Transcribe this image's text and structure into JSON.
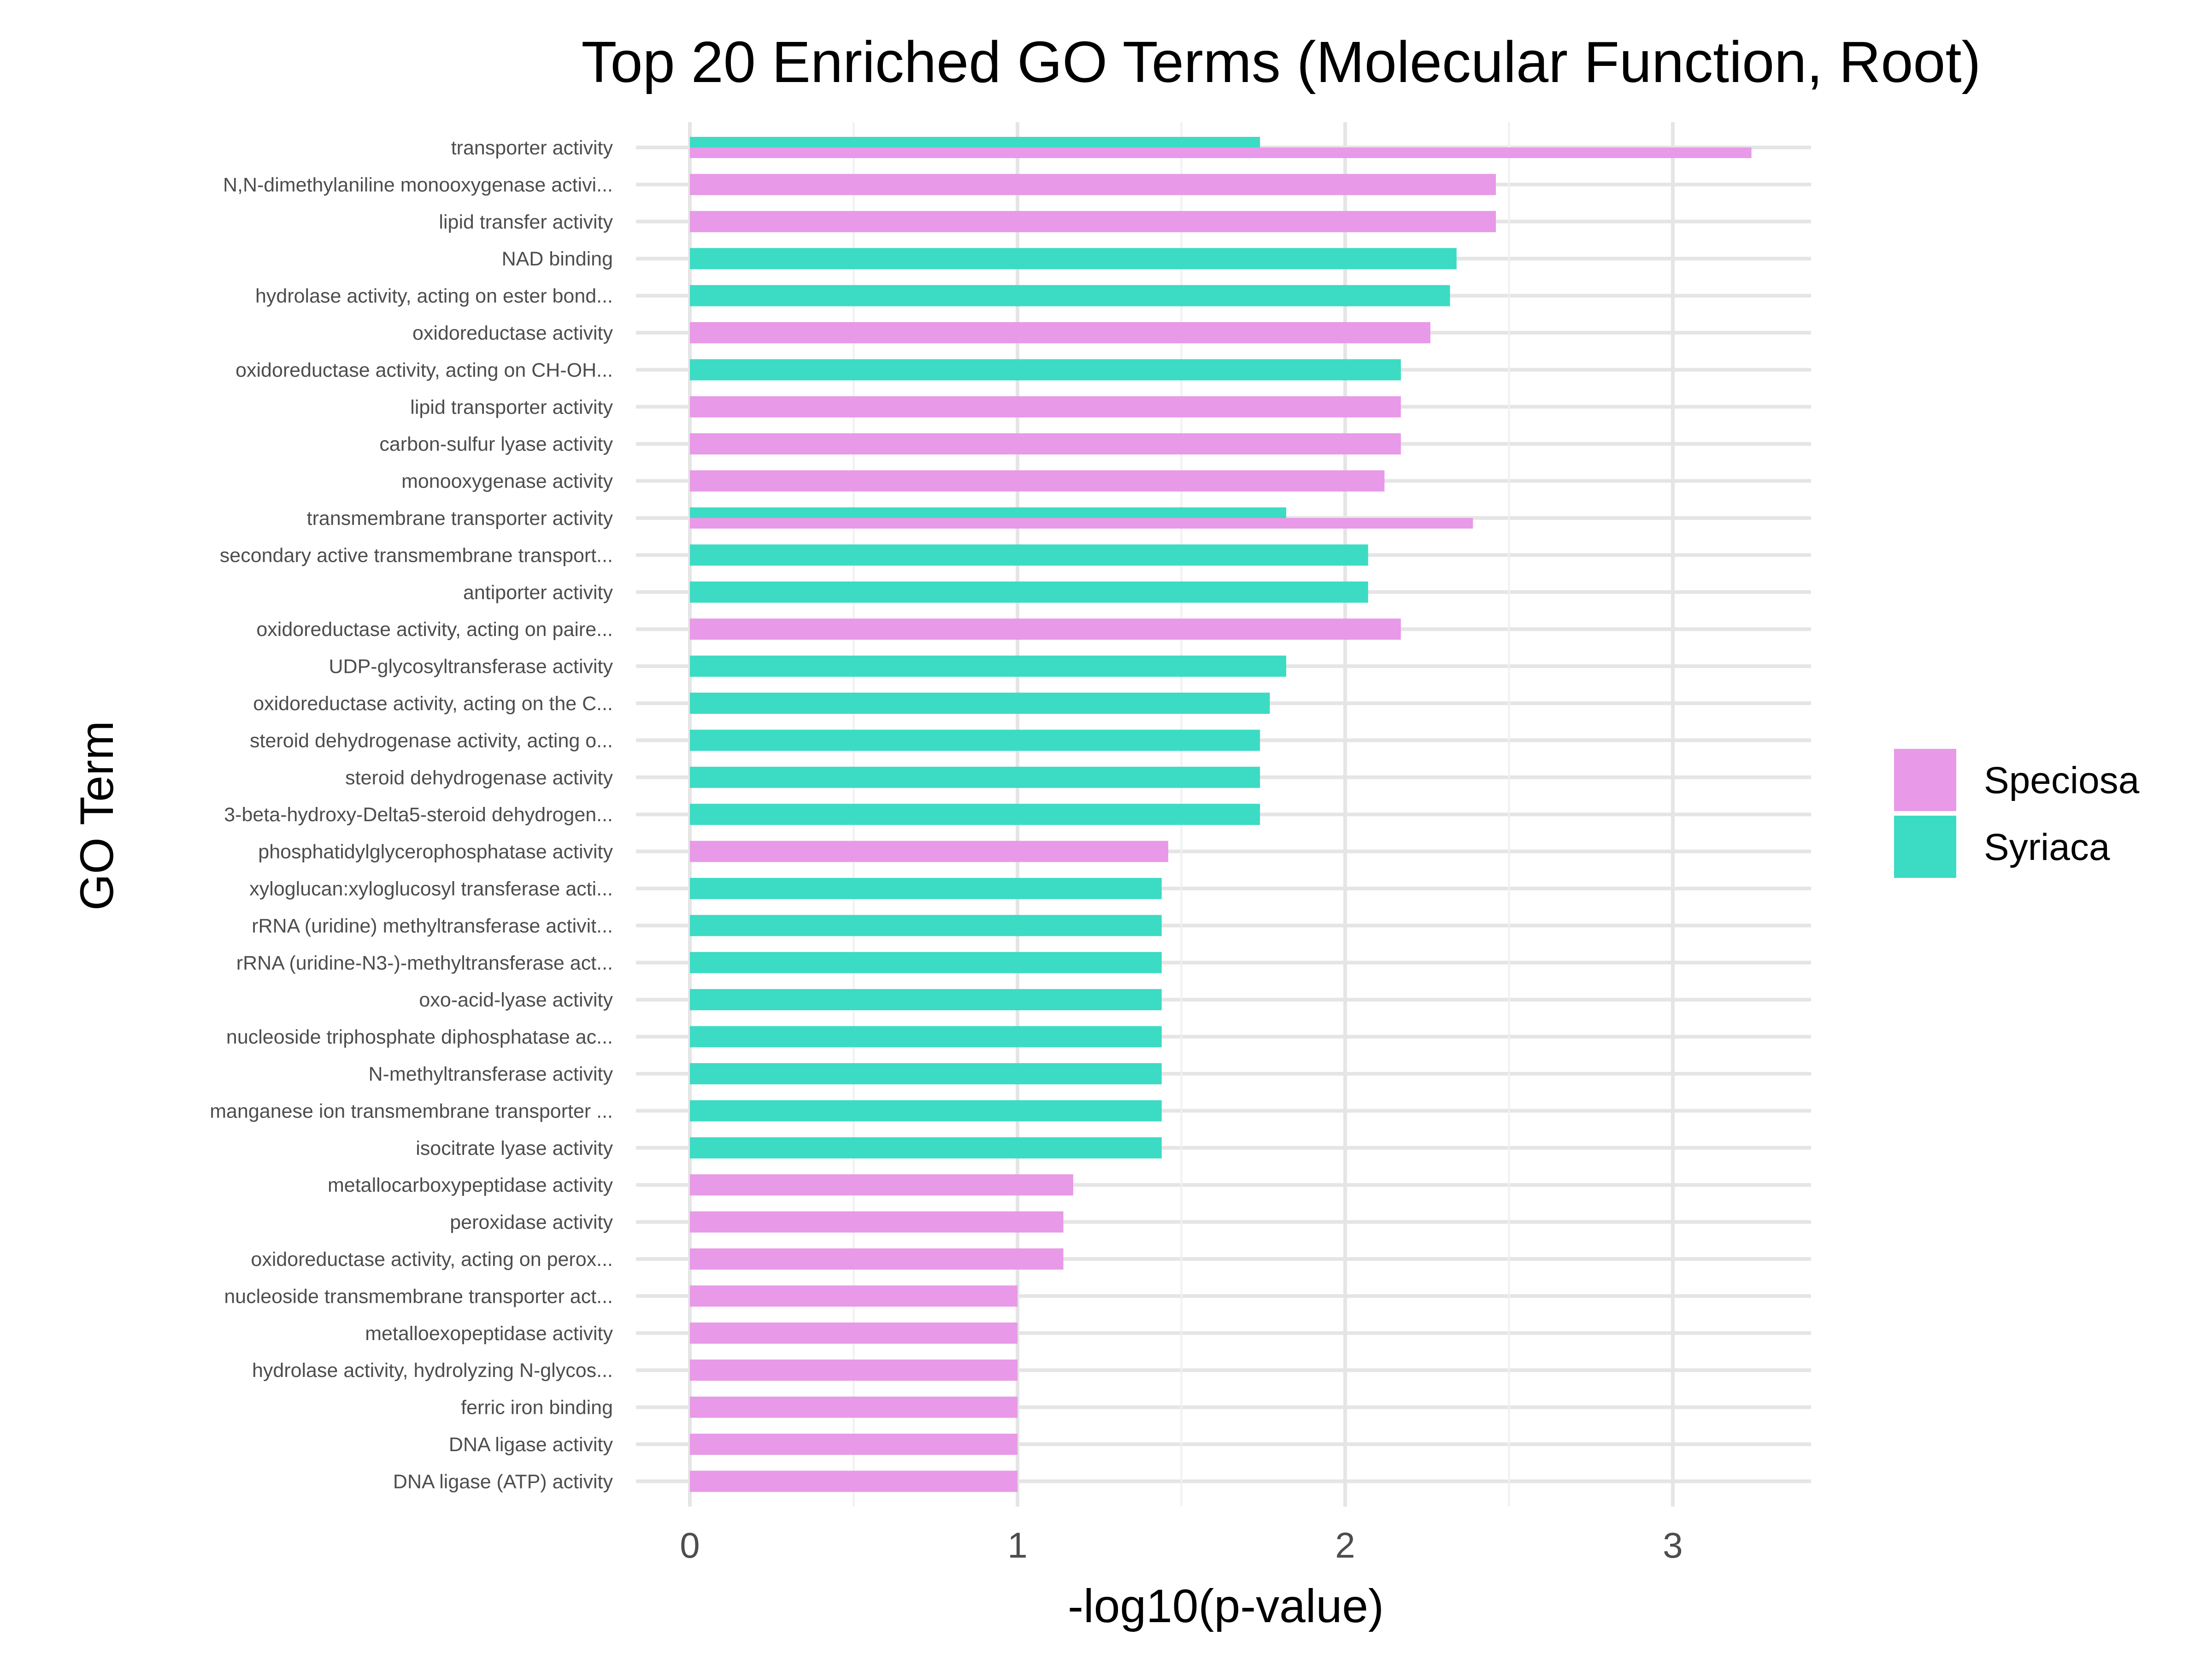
{
  "chart_data": {
    "type": "bar",
    "orientation": "horizontal",
    "title": "Top 20 Enriched GO Terms (Molecular Function, Root)",
    "xlabel": "-log10(p-value)",
    "ylabel": "GO Term",
    "xlim": [
      0,
      3.4
    ],
    "xticks": [
      "0",
      "1",
      "2",
      "3"
    ],
    "grid": true,
    "legend_position": "right",
    "colors": {
      "Speciosa": "#E899E8",
      "Syriaca": "#3CDBC4"
    },
    "categories": [
      "transporter activity",
      "N,N-dimethylaniline monooxygenase activi...",
      "lipid transfer activity",
      "NAD binding",
      "hydrolase activity, acting on ester bond...",
      "oxidoreductase activity",
      "oxidoreductase activity, acting on CH-OH...",
      "lipid transporter activity",
      "carbon-sulfur lyase activity",
      "monooxygenase activity",
      "transmembrane transporter activity",
      "secondary active transmembrane transport...",
      "antiporter activity",
      "oxidoreductase activity, acting on paire...",
      "UDP-glycosyltransferase activity",
      "oxidoreductase activity, acting on the C...",
      "steroid dehydrogenase activity, acting o...",
      "steroid dehydrogenase activity",
      "3-beta-hydroxy-Delta5-steroid dehydrogen...",
      "phosphatidylglycerophosphatase activity",
      "xyloglucan:xyloglucosyl transferase acti...",
      "rRNA (uridine) methyltransferase activit...",
      "rRNA (uridine-N3-)-methyltransferase act...",
      "oxo-acid-lyase activity",
      "nucleoside triphosphate diphosphatase ac...",
      "N-methyltransferase activity",
      "manganese ion transmembrane transporter ...",
      "isocitrate lyase activity",
      "metallocarboxypeptidase activity",
      "peroxidase activity",
      "oxidoreductase activity, acting on perox...",
      "nucleoside transmembrane transporter act...",
      "metalloexopeptidase activity",
      "hydrolase activity, hydrolyzing N-glycos...",
      "ferric iron binding",
      "DNA ligase activity",
      "DNA ligase (ATP) activity"
    ],
    "series": [
      {
        "name": "Speciosa",
        "values": [
          3.24,
          2.46,
          2.46,
          null,
          null,
          2.26,
          null,
          2.17,
          2.17,
          2.12,
          2.39,
          null,
          null,
          2.17,
          null,
          null,
          null,
          null,
          null,
          1.46,
          null,
          null,
          null,
          null,
          null,
          null,
          null,
          null,
          1.17,
          1.14,
          1.14,
          1.0,
          1.0,
          1.0,
          1.0,
          1.0,
          1.0
        ]
      },
      {
        "name": "Syriaca",
        "values": [
          1.74,
          null,
          null,
          2.34,
          2.32,
          null,
          2.17,
          null,
          null,
          null,
          1.82,
          2.07,
          2.07,
          null,
          1.82,
          1.77,
          1.74,
          1.74,
          1.74,
          null,
          1.44,
          1.44,
          1.44,
          1.44,
          1.44,
          1.44,
          1.44,
          1.44,
          null,
          null,
          null,
          null,
          null,
          null,
          null,
          null,
          null
        ]
      }
    ]
  }
}
